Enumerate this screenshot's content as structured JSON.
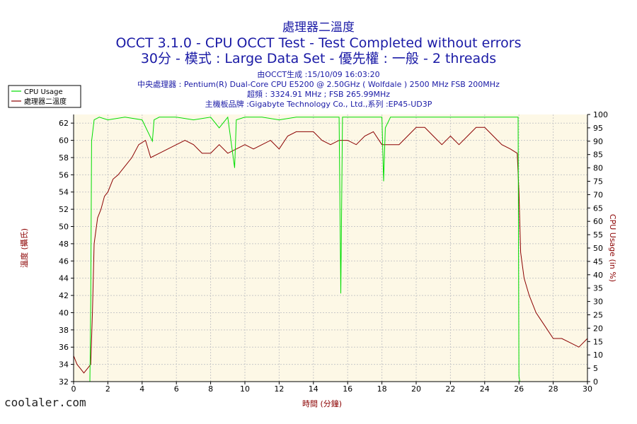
{
  "header": {
    "title1": "處理器二溫度",
    "title2": "OCCT 3.1.0 - CPU OCCT Test - Test Completed without errors",
    "title3": "30分 - 模式 : Large Data Set - 優先權 : 一般 - 2 threads",
    "info": [
      "由OCCT生成 :15/10/09 16:03:20",
      "中央處理器 : Pentium(R) Dual-Core CPU E5200 @ 2.50GHz ( Wolfdale ) 2500 MHz FSB 200MHz",
      "超頻 : 3324.91 MHz ; FSB 265.99MHz",
      "主機板品牌 :Gigabyte Technology Co., Ltd.,系列 :EP45-UD3P"
    ]
  },
  "legend": {
    "items": [
      {
        "label": "CPU Usage",
        "color": "#00dd00"
      },
      {
        "label": "處理器二溫度",
        "color": "#8b0000"
      }
    ]
  },
  "watermark": "coolaler.com",
  "chart_data": {
    "type": "line",
    "xlabel": "時間 (分鐘)",
    "ylabel": "溫度 (攝氏)",
    "y2label": "CPU Usage (in %)",
    "xlim": [
      0,
      30
    ],
    "ylim": [
      32,
      63
    ],
    "y2lim": [
      0,
      100
    ],
    "x_ticks": [
      0,
      2,
      4,
      6,
      8,
      10,
      12,
      14,
      16,
      18,
      20,
      22,
      24,
      26,
      28,
      30
    ],
    "y_ticks": [
      32,
      34,
      36,
      38,
      40,
      42,
      44,
      46,
      48,
      50,
      52,
      54,
      56,
      58,
      60,
      62
    ],
    "y2_ticks": [
      0,
      5,
      10,
      15,
      20,
      25,
      30,
      35,
      40,
      45,
      50,
      55,
      60,
      65,
      70,
      75,
      80,
      85,
      90,
      95,
      100
    ],
    "grid": true,
    "legend_position": "top-left",
    "series": [
      {
        "name": "處理器二溫度",
        "axis": "left",
        "color": "#8b0000",
        "x": [
          0,
          0.2,
          0.4,
          0.6,
          0.8,
          1.0,
          1.1,
          1.2,
          1.4,
          1.6,
          1.8,
          2.0,
          2.3,
          2.6,
          3.0,
          3.4,
          3.8,
          4.2,
          4.5,
          5.0,
          5.5,
          6.0,
          6.5,
          7.0,
          7.5,
          8.0,
          8.5,
          9.0,
          9.5,
          10.0,
          10.5,
          11.0,
          11.5,
          12.0,
          12.5,
          13.0,
          13.5,
          14.0,
          14.5,
          15.0,
          15.5,
          16.0,
          16.5,
          17.0,
          17.5,
          18.0,
          18.5,
          19.0,
          19.5,
          20.0,
          20.5,
          21.0,
          21.5,
          22.0,
          22.5,
          23.0,
          23.5,
          24.0,
          24.5,
          25.0,
          25.5,
          25.9,
          26.0,
          26.1,
          26.3,
          26.6,
          27.0,
          27.5,
          28.0,
          28.5,
          29.0,
          29.5,
          30.0
        ],
        "values": [
          35,
          34,
          33.5,
          33,
          33.5,
          34,
          40,
          48,
          51,
          52,
          53.5,
          54,
          55.5,
          56,
          57,
          58,
          59.5,
          60,
          58,
          58.5,
          59,
          59.5,
          60,
          59.5,
          58.5,
          58.5,
          59.5,
          58.5,
          59,
          59.5,
          59,
          59.5,
          60,
          59,
          60.5,
          61,
          61,
          61,
          60,
          59.5,
          60,
          60,
          59.5,
          60.5,
          61,
          59.5,
          59.5,
          59.5,
          60.5,
          61.5,
          61.5,
          60.5,
          59.5,
          60.5,
          59.5,
          60.5,
          61.5,
          61.5,
          60.5,
          59.5,
          59,
          58.5,
          54,
          47,
          44,
          42,
          40,
          38.5,
          37,
          37,
          36.5,
          36,
          37
        ]
      },
      {
        "name": "CPU Usage",
        "axis": "right",
        "color": "#00dd00",
        "x": [
          0,
          0.95,
          1.0,
          1.05,
          1.2,
          1.5,
          2.0,
          3.0,
          4.0,
          4.6,
          4.7,
          5.0,
          6.0,
          7.0,
          8.0,
          8.5,
          9.0,
          9.4,
          9.5,
          10.0,
          11.0,
          12.0,
          13.0,
          14.0,
          15.0,
          15.5,
          15.6,
          15.7,
          16.0,
          17.0,
          18.0,
          18.1,
          18.2,
          18.5,
          19.0,
          20.0,
          21.0,
          22.0,
          23.0,
          24.0,
          25.0,
          25.95,
          26.0,
          26.05,
          27.0,
          28.0,
          29.0,
          30.0
        ],
        "values": [
          0,
          0,
          30,
          90,
          98,
          99,
          98,
          99,
          98,
          90,
          98,
          99,
          99,
          98,
          99,
          95,
          99,
          80,
          98,
          99,
          99,
          98,
          99,
          99,
          99,
          99,
          33,
          99,
          99,
          99,
          99,
          75,
          95,
          99,
          99,
          99,
          99,
          99,
          99,
          99,
          99,
          99,
          2,
          0,
          0,
          0,
          0,
          0
        ]
      }
    ]
  }
}
